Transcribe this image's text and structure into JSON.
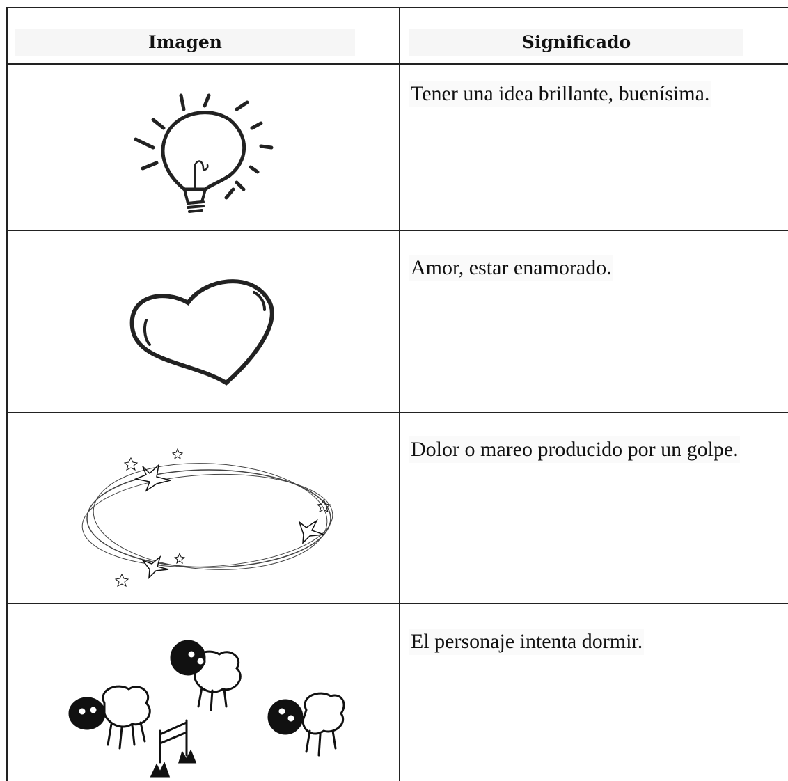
{
  "table": {
    "header": [
      "Imagen",
      "Significado"
    ],
    "rows": [
      "Tener una idea brillante, buenísima.",
      "Amor, estar enamorado.",
      "Dolor o mareo producido por un golpe.",
      "El personaje intenta dormir."
    ]
  }
}
